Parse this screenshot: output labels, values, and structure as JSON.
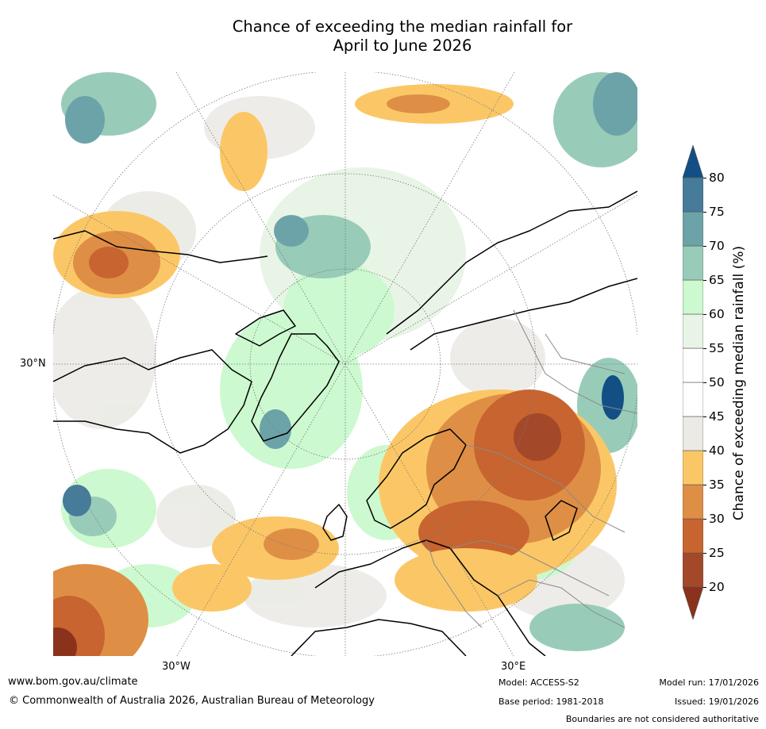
{
  "title": {
    "line1": "Chance of exceeding the median rainfall for",
    "line2": "April to June 2026"
  },
  "map": {
    "projection": "north polar stereographic",
    "lat_labels": [
      "30°N"
    ],
    "lon_labels": [
      "30°W",
      "30°E"
    ]
  },
  "colorbar": {
    "label": "Chance of exceeding median rainfall (%)",
    "ticks": [
      "20",
      "25",
      "30",
      "35",
      "40",
      "45",
      "50",
      "55",
      "60",
      "65",
      "70",
      "75",
      "80"
    ],
    "colors": [
      "#a3492a",
      "#c8642f",
      "#de8f45",
      "#fbc766",
      "#ebeae5",
      "#ffffff",
      "#ffffff",
      "#e8f5e6",
      "#ccf9cf",
      "#98ccb9",
      "#6ca3a9",
      "#467b9a"
    ],
    "under_color": "#8b321c",
    "over_color": "#134f85"
  },
  "footer": {
    "website": "www.bom.gov.au/climate",
    "copyright": "© Commonwealth of Australia 2026, Australian Bureau of Meteorology",
    "model": "Model: ACCESS-S2",
    "base_period": "Base period: 1981-2018",
    "model_run": "Model run: 17/01/2026",
    "issued": "Issued: 19/01/2026",
    "disclaimer": "Boundaries are not considered authoritative"
  }
}
